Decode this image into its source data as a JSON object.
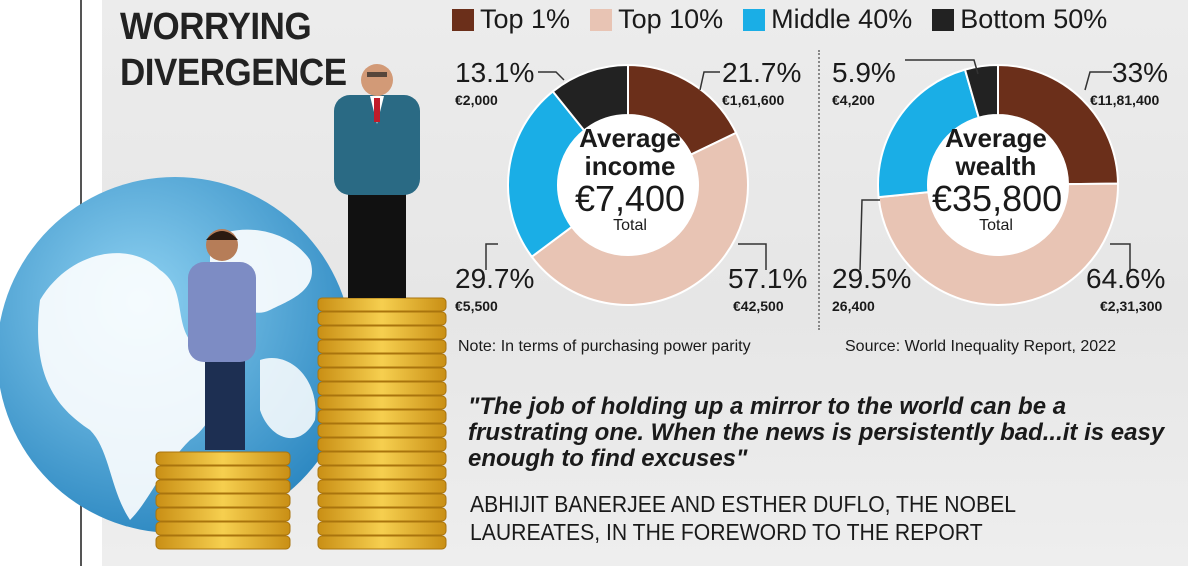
{
  "title": {
    "line1": "WORRYING",
    "line2": "DIVERGENCE"
  },
  "legend": [
    {
      "label": "Top 1%",
      "color": "#6b2f1a"
    },
    {
      "label": "Top 10%",
      "color": "#e8c4b4"
    },
    {
      "label": "Middle 40%",
      "color": "#1aaee6"
    },
    {
      "label": "Bottom 50%",
      "color": "#222222"
    }
  ],
  "chart_data": [
    {
      "type": "pie",
      "center_label": "Average income",
      "center_value": "€7,400",
      "center_sub": "Total",
      "categories": [
        "Top 1%",
        "Top 10%",
        "Middle 40%",
        "Bottom 50%"
      ],
      "values": [
        21.7,
        57.1,
        29.7,
        13.1
      ],
      "value_labels": [
        "21.7%",
        "57.1%",
        "29.7%",
        "13.1%"
      ],
      "amounts": [
        "€1,61,600",
        "€42,500",
        "€5,500",
        "€2,000"
      ]
    },
    {
      "type": "pie",
      "center_label": "Average wealth",
      "center_value": "€35,800",
      "center_sub": "Total",
      "categories": [
        "Top 1%",
        "Top 10%",
        "Middle 40%",
        "Bottom 50%"
      ],
      "values": [
        33,
        64.6,
        29.5,
        5.9
      ],
      "value_labels": [
        "33%",
        "64.6%",
        "29.5%",
        "5.9%"
      ],
      "amounts": [
        "€11,81,400",
        "€2,31,300",
        "26,400",
        "€4,200"
      ]
    }
  ],
  "note": "Note: In terms of purchasing power parity",
  "source": "Source: World Inequality Report, 2022",
  "quote": "\"The job of holding up a mirror to the world can be a frustrating one. When the news is persistently bad...it is easy enough to find excuses\"",
  "attribution": "ABHIJIT BANERJEE AND ESTHER DUFLO, THE NOBEL LAUREATES, IN THE FOREWORD TO THE REPORT"
}
